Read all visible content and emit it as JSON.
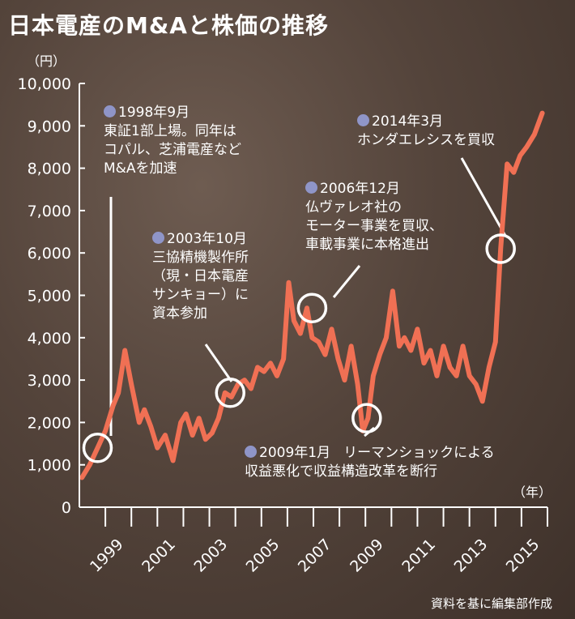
{
  "title": "日本電産のM&Aと株価の推移",
  "y_unit": "（円）",
  "x_unit": "（年）",
  "source": "資料を基に編集部作成",
  "colors": {
    "line": "#f07054",
    "axis": "#ffffff",
    "bullet": "#8f95c8"
  },
  "annotations": [
    {
      "date": "1998年9月",
      "lines": [
        "東証1部上場。同年は",
        "コパル、芝浦電産など",
        "M&Aを加速"
      ],
      "x": 1998.7,
      "y": 1400
    },
    {
      "date": "2003年10月",
      "lines": [
        "三協精機製作所",
        "（現・日本電産",
        "サンキョー）に",
        "資本参加"
      ],
      "x": 2003.8,
      "y": 2700
    },
    {
      "date": "2006年12月",
      "lines": [
        "仏ヴァレオ社の",
        "モーター事業を買収、",
        "車載事業に本格進出"
      ],
      "x": 2006.95,
      "y": 4700
    },
    {
      "date": "2009年1月",
      "lines": [
        "リーマンショックによる",
        "収益悪化で収益構造改革を断行"
      ],
      "x": 2009.05,
      "y": 2100
    },
    {
      "date": "2014年3月",
      "lines": [
        "ホンダエレシスを買収"
      ],
      "x": 2014.2,
      "y": 6100
    }
  ],
  "chart_data": {
    "type": "line",
    "ylabel": "（円）",
    "xlabel": "（年）",
    "ylim": [
      0,
      10000
    ],
    "xlim": [
      1998,
      2016
    ],
    "y_ticks": [
      "0",
      "1,000",
      "2,000",
      "3,000",
      "4,000",
      "5,000",
      "6,000",
      "7,000",
      "8,000",
      "9,000",
      "10,000"
    ],
    "x_ticks": [
      "1999",
      "2001",
      "2003",
      "2005",
      "2007",
      "2009",
      "2011",
      "2013",
      "2015"
    ],
    "grid": false,
    "series": [
      {
        "x": [
          1998.1,
          1998.4,
          1998.7,
          1999.0,
          1999.3,
          1999.5,
          1999.75,
          2000.0,
          2000.3,
          2000.5,
          2000.75,
          2001.0,
          2001.3,
          2001.6,
          2001.9,
          2002.1,
          2002.35,
          2002.6,
          2002.85,
          2003.1,
          2003.35,
          2003.6,
          2003.85,
          2004.1,
          2004.35,
          2004.6,
          2004.85,
          2005.1,
          2005.35,
          2005.6,
          2005.85,
          2006.05,
          2006.25,
          2006.5,
          2006.75,
          2006.95,
          2007.2,
          2007.45,
          2007.7,
          2007.95,
          2008.2,
          2008.45,
          2008.7,
          2008.9,
          2009.1,
          2009.3,
          2009.55,
          2009.8,
          2010.05,
          2010.3,
          2010.5,
          2010.75,
          2011.0,
          2011.25,
          2011.5,
          2011.75,
          2012.0,
          2012.25,
          2012.5,
          2012.75,
          2013.0,
          2013.25,
          2013.5,
          2013.75,
          2014.0,
          2014.2,
          2014.45,
          2014.7,
          2014.95,
          2015.2,
          2015.5,
          2015.8
        ],
        "y": [
          700,
          1000,
          1400,
          1800,
          2400,
          2700,
          3700,
          2900,
          2000,
          2300,
          1900,
          1400,
          1700,
          1100,
          2000,
          2200,
          1700,
          2100,
          1600,
          1750,
          2100,
          2700,
          2600,
          2900,
          3000,
          2800,
          3300,
          3200,
          3400,
          3100,
          3500,
          5300,
          4400,
          4100,
          4700,
          4000,
          3900,
          3600,
          4200,
          3500,
          3000,
          3800,
          2900,
          1800,
          2100,
          3100,
          3600,
          4000,
          5100,
          3800,
          4000,
          3700,
          4200,
          3400,
          3700,
          3100,
          3800,
          3300,
          3100,
          3800,
          3100,
          2900,
          2500,
          3300,
          3900,
          6100,
          8100,
          7900,
          8300,
          8500,
          8800,
          9300
        ]
      }
    ]
  }
}
